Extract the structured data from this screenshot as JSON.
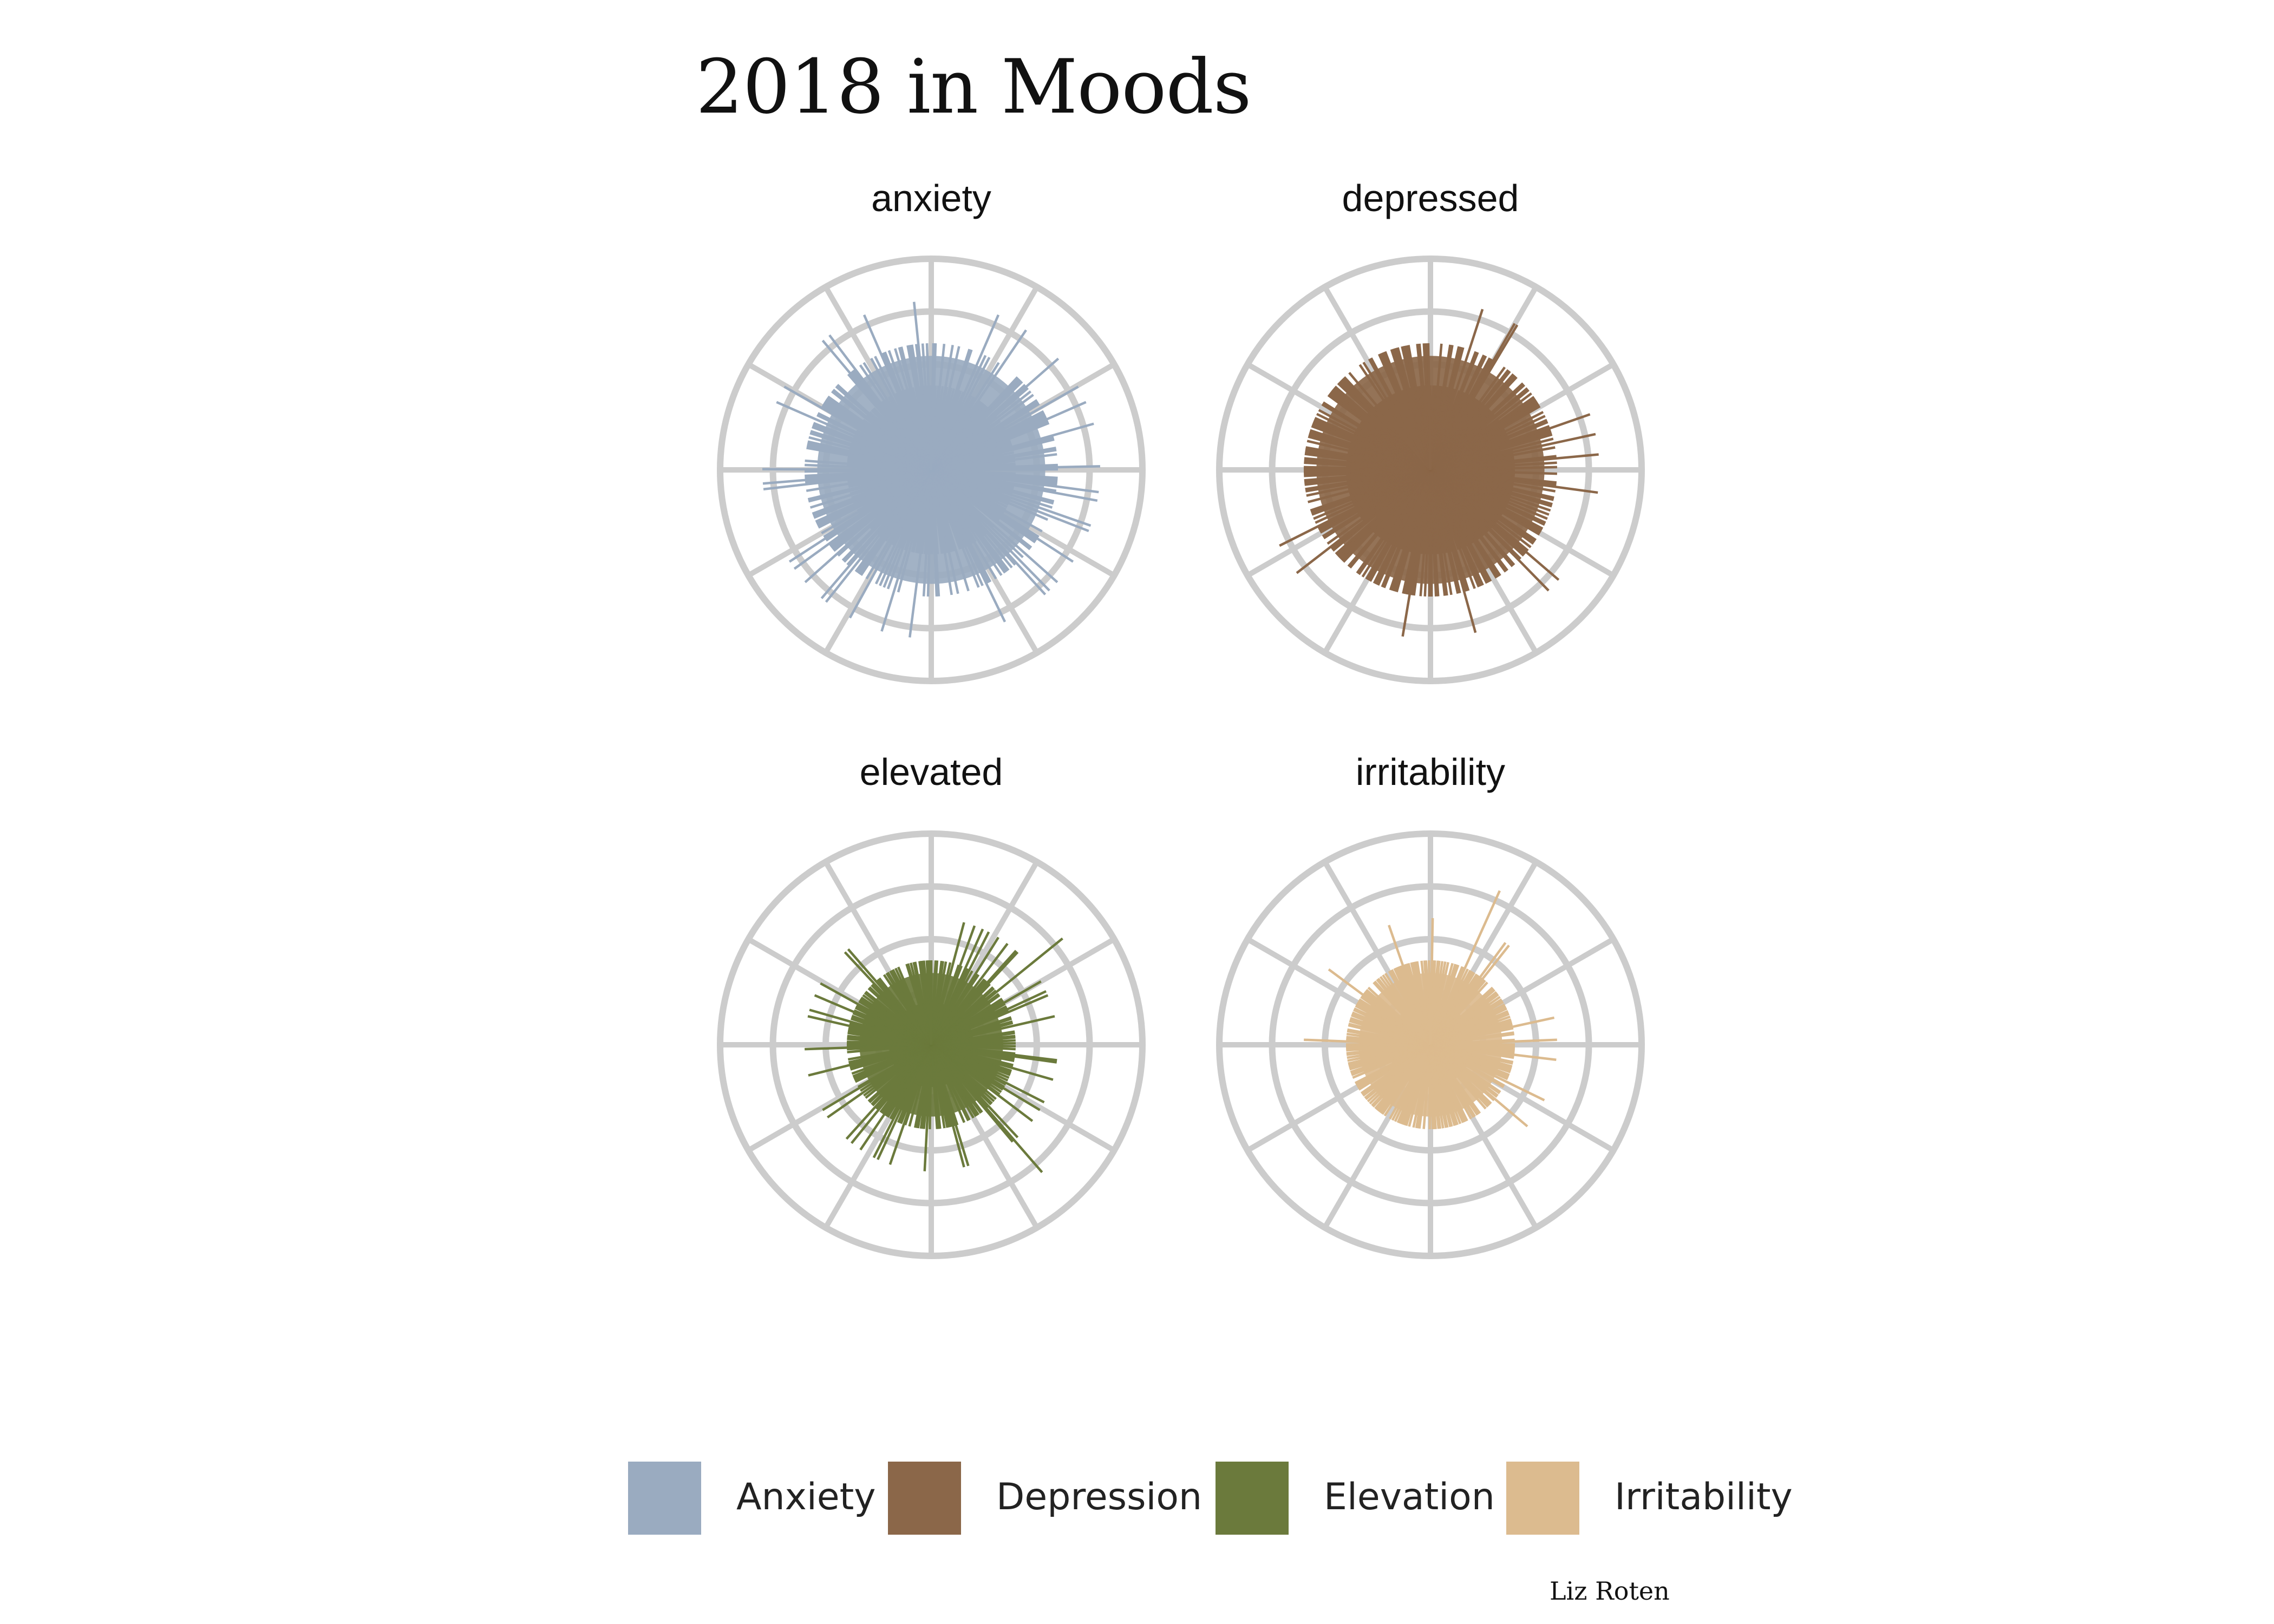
{
  "page": {
    "title": "2018 in Moods",
    "credit": "Liz Roten"
  },
  "colors": {
    "grid": "#cccccc",
    "anxiety": "#9aabc0",
    "depressed": "#8b6749",
    "elevated": "#6b7a3c",
    "irritability": "#dcbb8f"
  },
  "legend": [
    {
      "label": "Anxiety",
      "color": "#9aabc0"
    },
    {
      "label": "Depression",
      "color": "#8b6749"
    },
    {
      "label": "Elevation",
      "color": "#6b7a3c"
    },
    {
      "label": "Irritability",
      "color": "#dcbb8f"
    }
  ],
  "chart_data": [
    {
      "type": "radial-bar",
      "title": "anxiety",
      "color": "#9aabc0",
      "rlim": [
        0,
        5
      ],
      "grid": true,
      "core": 2.7,
      "values": [
        2,
        3,
        3,
        2,
        1,
        2,
        3,
        1,
        2,
        1,
        3,
        2,
        1,
        3,
        2,
        1,
        2,
        1,
        3,
        3,
        2,
        2,
        1,
        2,
        4,
        1,
        3,
        1,
        3,
        2,
        1,
        2,
        2,
        3,
        1,
        4,
        2,
        2,
        2,
        2,
        2,
        2,
        2,
        2,
        3,
        3,
        3,
        3,
        1,
        3,
        4,
        3,
        2,
        3,
        1,
        3,
        2,
        1,
        3,
        3,
        3,
        2,
        4,
        2,
        3,
        3,
        3,
        3,
        4,
        3,
        3,
        2,
        2,
        2,
        2,
        2,
        4,
        3,
        3,
        1,
        2,
        1,
        3,
        3,
        2,
        3,
        2,
        1,
        2,
        2,
        3,
        4,
        3,
        1,
        1,
        2,
        3,
        3,
        3,
        3,
        4,
        1,
        3,
        4,
        2,
        2,
        2,
        3,
        3,
        2,
        3,
        1,
        4,
        2,
        4,
        2,
        3,
        2,
        1,
        2,
        1,
        2,
        3,
        2,
        2,
        3,
        4,
        3,
        3,
        2,
        2,
        3,
        3,
        1,
        1,
        4,
        2,
        3,
        1,
        4,
        1,
        4,
        3,
        2,
        3,
        2,
        3,
        3,
        3,
        1,
        3,
        1,
        2,
        3,
        2,
        2,
        3,
        3,
        4,
        2,
        3,
        2,
        3,
        2,
        2,
        1,
        1,
        3,
        2,
        2,
        2,
        2,
        3,
        2,
        2,
        3,
        2,
        2,
        1,
        1,
        2,
        3,
        3,
        1,
        2,
        2,
        3,
        2,
        3,
        2,
        1,
        2,
        4,
        2,
        2,
        2,
        1,
        2,
        2,
        1,
        3,
        1,
        4,
        2,
        1,
        3,
        2,
        3,
        2,
        3,
        1,
        3,
        2,
        2,
        4,
        2,
        3,
        1,
        2,
        3,
        3,
        3,
        3,
        2,
        4,
        2,
        4,
        3,
        1,
        3,
        3,
        2,
        2,
        3,
        4,
        1,
        3,
        3,
        3,
        3,
        4,
        1,
        3,
        4,
        3,
        2,
        3,
        2,
        1,
        3,
        3,
        3,
        3,
        2,
        3,
        3,
        3,
        2,
        1,
        3,
        2,
        1,
        3,
        3,
        1,
        2,
        2,
        3,
        2,
        2,
        4,
        3,
        4,
        3,
        3,
        1,
        3,
        4,
        1,
        3,
        2,
        3,
        2,
        2,
        2,
        2,
        2,
        3,
        3,
        3,
        3,
        2,
        3,
        2,
        3,
        3,
        2,
        3,
        3,
        3,
        2,
        4,
        2,
        3,
        3,
        2,
        1,
        4,
        3,
        3,
        3,
        3,
        3,
        3,
        2,
        1,
        3,
        3,
        2,
        3,
        3,
        2,
        1,
        2,
        2,
        2,
        1,
        3,
        4,
        3,
        3,
        4,
        2,
        2,
        3,
        2,
        3,
        1,
        2,
        2,
        3,
        1,
        3,
        2,
        2,
        4,
        3,
        3,
        2,
        3,
        2,
        2,
        3,
        2,
        3,
        3,
        2,
        1,
        3,
        3,
        3,
        2,
        3,
        4,
        2,
        3,
        2,
        3,
        2
      ]
    },
    {
      "type": "radial-bar",
      "title": "depressed",
      "color": "#8b6749",
      "rlim": [
        0,
        5
      ],
      "grid": true,
      "core": 2.7,
      "values": [
        2,
        1,
        2,
        2,
        2,
        3,
        2,
        2,
        2,
        3,
        3,
        2,
        2,
        3,
        3,
        3,
        2,
        2,
        4,
        1,
        2,
        3,
        3,
        2,
        2,
        3,
        3,
        2,
        3,
        3,
        4,
        4,
        2,
        2,
        2,
        2,
        3,
        2,
        3,
        3,
        2,
        3,
        3,
        3,
        2,
        2,
        2,
        3,
        3,
        2,
        3,
        3,
        1,
        3,
        2,
        3,
        3,
        3,
        3,
        3,
        3,
        2,
        2,
        3,
        2,
        3,
        2,
        3,
        3,
        2,
        3,
        4,
        3,
        3,
        3,
        1,
        3,
        2,
        4,
        2,
        3,
        2,
        2,
        2,
        3,
        4,
        2,
        3,
        2,
        3,
        2,
        2,
        3,
        2,
        2,
        2,
        3,
        3,
        4,
        2,
        3,
        2,
        2,
        3,
        3,
        2,
        3,
        3,
        2,
        3,
        2,
        3,
        2,
        3,
        2,
        3,
        3,
        2,
        3,
        3,
        3,
        3,
        2,
        2,
        3,
        3,
        3,
        2,
        3,
        2,
        3,
        4,
        3,
        3,
        2,
        3,
        4,
        2,
        2,
        3,
        3,
        2,
        2,
        3,
        3,
        2,
        2,
        3,
        3,
        3,
        2,
        2,
        3,
        3,
        3,
        2,
        3,
        3,
        3,
        2,
        3,
        2,
        1,
        3,
        3,
        4,
        2,
        3,
        3,
        2,
        2,
        3,
        2,
        3,
        3,
        2,
        2,
        3,
        3,
        2,
        3,
        3,
        2,
        3,
        2,
        3,
        2,
        2,
        3,
        3,
        4,
        3,
        3,
        3,
        2,
        2,
        3,
        3,
        3,
        3,
        2,
        2,
        3,
        3,
        2,
        3,
        3,
        3,
        2,
        3,
        3,
        3,
        2,
        3,
        2,
        3,
        3,
        2,
        2,
        2,
        3,
        3,
        2,
        2,
        3,
        3,
        3,
        3,
        3,
        3,
        1,
        3,
        3,
        4,
        2,
        3,
        2,
        2,
        3,
        3,
        2,
        3,
        3,
        3,
        4,
        2,
        3,
        2,
        3,
        2,
        3,
        3,
        3,
        2,
        2,
        2,
        3,
        2,
        2,
        3,
        2,
        3,
        3,
        2,
        3,
        3,
        3,
        2,
        3,
        3,
        3,
        3,
        3,
        2,
        3,
        3,
        3,
        2,
        3,
        3,
        3,
        3,
        2,
        2,
        3,
        2,
        3,
        3,
        3,
        3,
        2,
        3,
        3,
        3,
        3,
        3,
        2,
        3,
        2,
        3,
        2,
        2,
        3,
        3,
        2,
        2,
        2,
        3,
        3,
        3,
        3,
        3,
        3,
        2,
        3,
        3,
        3,
        3,
        3,
        2,
        2,
        3,
        2,
        2,
        2,
        2,
        2,
        3,
        2,
        3,
        2,
        2,
        3,
        3,
        2,
        2,
        2,
        3,
        3,
        3,
        3,
        2,
        2,
        3,
        3,
        3,
        3,
        2,
        3,
        3,
        3,
        3,
        2,
        2,
        2,
        3,
        3,
        2,
        3,
        3,
        3
      ]
    },
    {
      "type": "radial-bar",
      "title": "elevated",
      "color": "#6b7a3c",
      "rlim": [
        0,
        5
      ],
      "grid": true,
      "core": 1.7,
      "values": [
        2,
        1,
        1,
        2,
        2,
        1,
        1,
        2,
        2,
        1,
        2,
        1,
        1,
        2,
        1,
        3,
        1,
        1,
        1,
        2,
        3,
        2,
        1,
        1,
        3,
        2,
        2,
        3,
        1,
        2,
        1,
        1,
        3,
        2,
        2,
        1,
        1,
        3,
        1,
        2,
        2,
        2,
        3,
        3,
        2,
        1,
        1,
        2,
        2,
        1,
        2,
        4,
        1,
        2,
        2,
        1,
        1,
        2,
        2,
        2,
        3,
        2,
        1,
        2,
        2,
        3,
        2,
        3,
        1,
        1,
        1,
        2,
        2,
        1,
        2,
        2,
        1,
        3,
        1,
        1,
        1,
        2,
        2,
        1,
        2,
        2,
        1,
        2,
        1,
        2,
        1,
        2,
        1,
        2,
        1,
        1,
        2,
        3,
        3,
        2,
        2,
        2,
        1,
        1,
        2,
        2,
        3,
        1,
        2,
        2,
        2,
        2,
        1,
        2,
        1,
        2,
        1,
        3,
        2,
        1,
        2,
        3,
        2,
        1,
        2,
        1,
        2,
        3,
        1,
        1,
        2,
        1,
        2,
        1,
        2,
        2,
        1,
        3,
        2,
        4,
        3,
        1,
        1,
        2,
        2,
        1,
        2,
        2,
        2,
        1,
        2,
        1,
        1,
        2,
        2,
        1,
        1,
        2,
        1,
        1,
        1,
        1,
        2,
        3,
        2,
        3,
        2,
        2,
        2,
        2,
        1,
        2,
        1,
        1,
        2,
        2,
        2,
        1,
        1,
        1,
        1,
        2,
        1,
        3,
        1,
        2,
        2,
        2,
        1,
        2,
        2,
        2,
        1,
        1,
        1,
        2,
        1,
        1,
        2,
        3,
        1,
        2,
        2,
        2,
        1,
        3,
        1,
        3,
        2,
        2,
        1,
        2,
        2,
        2,
        3,
        2,
        2,
        2,
        1,
        3,
        2,
        2,
        3,
        1,
        2,
        2,
        1,
        2,
        2,
        1,
        1,
        2,
        1,
        2,
        1,
        3,
        1,
        2,
        1,
        3,
        2,
        1,
        1,
        1,
        2,
        2,
        2,
        2,
        2,
        1,
        2,
        1,
        1,
        2,
        2,
        2,
        3,
        2,
        2,
        1,
        2,
        1,
        1,
        1,
        1,
        2,
        1,
        2,
        3,
        2,
        2,
        2,
        2,
        1,
        2,
        2,
        2,
        1,
        2,
        2,
        2,
        2,
        2,
        3,
        2,
        2,
        3,
        1,
        2,
        2,
        2,
        1,
        2,
        3,
        2,
        1,
        2,
        2,
        2,
        3,
        1,
        2,
        2,
        2,
        2,
        1,
        2,
        1,
        2,
        2,
        1,
        1,
        2,
        2,
        1,
        2,
        2,
        3,
        1,
        3,
        2,
        2,
        2,
        1,
        1,
        1,
        2,
        1,
        2,
        2,
        1,
        2,
        2,
        2,
        1,
        2,
        1,
        2,
        1,
        1,
        1,
        1,
        1,
        2,
        2,
        1,
        2,
        1,
        2,
        2,
        1,
        1,
        2,
        2,
        2,
        2,
        1,
        2,
        2,
        2
      ]
    },
    {
      "type": "radial-bar",
      "title": "irritability",
      "color": "#dcbb8f",
      "rlim": [
        0,
        5
      ],
      "grid": true,
      "core": 1.7,
      "values": [
        1,
        3,
        2,
        2,
        1,
        2,
        2,
        1,
        2,
        1,
        2,
        1,
        2,
        1,
        1,
        2,
        1,
        2,
        2,
        2,
        1,
        1,
        2,
        2,
        4,
        1,
        2,
        1,
        2,
        2,
        2,
        2,
        1,
        2,
        2,
        2,
        3,
        2,
        3,
        2,
        2,
        1,
        2,
        1,
        1,
        1,
        1,
        2,
        2,
        2,
        1,
        2,
        2,
        2,
        1,
        2,
        1,
        2,
        2,
        2,
        1,
        2,
        2,
        2,
        2,
        1,
        2,
        2,
        2,
        1,
        2,
        1,
        2,
        2,
        2,
        2,
        2,
        3,
        2,
        1,
        1,
        2,
        2,
        1,
        1,
        1,
        2,
        3,
        1,
        2,
        2,
        2,
        2,
        2,
        2,
        2,
        3,
        2,
        2,
        1,
        1,
        2,
        2,
        1,
        2,
        2,
        2,
        2,
        2,
        1,
        2,
        2,
        2,
        2,
        1,
        3,
        1,
        1,
        2,
        2,
        1,
        1,
        1,
        2,
        2,
        1,
        2,
        2,
        1,
        3,
        2,
        1,
        1,
        2,
        2,
        2,
        2,
        1,
        2,
        1,
        1,
        1,
        1,
        2,
        2,
        2,
        1,
        2,
        2,
        1,
        2,
        1,
        1,
        2,
        2,
        2,
        2,
        1,
        2,
        1,
        2,
        2,
        2,
        1,
        2,
        2,
        1,
        2,
        2,
        1,
        2,
        1,
        2,
        2,
        1,
        2,
        2,
        2,
        1,
        2,
        1,
        1,
        1,
        2,
        1,
        1,
        2,
        2,
        2,
        1,
        2,
        1,
        1,
        2,
        1,
        2,
        2,
        2,
        2,
        2,
        2,
        2,
        1,
        2,
        1,
        2,
        1,
        2,
        1,
        1,
        1,
        2,
        1,
        2,
        2,
        2,
        2,
        2,
        2,
        2,
        1,
        2,
        2,
        1,
        2,
        1,
        2,
        1,
        2,
        2,
        1,
        2,
        2,
        2,
        1,
        1,
        2,
        2,
        2,
        2,
        2,
        2,
        1,
        1,
        1,
        2,
        1,
        2,
        2,
        2,
        1,
        2,
        2,
        2,
        2,
        2,
        1,
        2,
        1,
        2,
        1,
        2,
        2,
        1,
        2,
        2,
        2,
        2,
        2,
        1,
        3,
        2,
        2,
        2,
        1,
        2,
        1,
        2,
        2,
        1,
        1,
        2,
        2,
        1,
        2,
        2,
        2,
        1,
        2,
        2,
        2,
        1,
        2,
        2,
        1,
        2,
        2,
        2,
        2,
        2,
        2,
        1,
        2,
        2,
        3,
        2,
        2,
        2,
        2,
        1,
        2,
        1,
        1,
        1,
        1,
        2,
        2,
        1,
        2,
        2,
        1,
        2,
        1,
        2,
        1,
        2,
        1,
        1,
        2,
        2,
        2,
        1,
        2,
        2,
        2,
        2,
        2,
        2,
        3,
        2,
        2,
        2,
        2,
        1,
        2,
        2,
        2,
        2,
        2,
        1,
        1,
        2,
        1,
        2,
        2,
        1,
        2
      ]
    }
  ]
}
